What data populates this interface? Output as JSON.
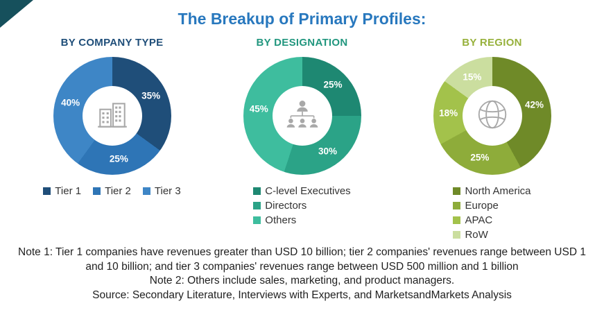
{
  "title": "The Breakup of Primary Profiles:",
  "title_color": "#2878BE",
  "corner_color": "#16505C",
  "chart_data": [
    {
      "type": "donut",
      "title": "BY COMPANY TYPE",
      "title_color": "#1F4E79",
      "labels": [
        "Tier 1",
        "Tier 2",
        "Tier 3"
      ],
      "values": [
        35,
        25,
        40
      ],
      "colors": [
        "#1F4E79",
        "#2E75B6",
        "#3E86C6"
      ],
      "legend": "horizontal",
      "center_icon": "buildings-icon",
      "start_angle": 0
    },
    {
      "type": "donut",
      "title": "BY DESIGNATION",
      "title_color": "#21967E",
      "labels": [
        "C-level Executives",
        "Directors",
        "Others"
      ],
      "values": [
        25,
        30,
        45
      ],
      "colors": [
        "#1E8872",
        "#2BA387",
        "#3EBD9E"
      ],
      "legend": "vertical",
      "center_icon": "org-chart-icon",
      "start_angle": 0
    },
    {
      "type": "donut",
      "title": "BY REGION",
      "title_color": "#97B13C",
      "labels": [
        "North America",
        "Europe",
        "APAC",
        "RoW"
      ],
      "values": [
        42,
        25,
        18,
        15
      ],
      "colors": [
        "#6F8A28",
        "#8EAC3A",
        "#A3C24B",
        "#CBDE9F"
      ],
      "legend": "vertical",
      "center_icon": "globe-icon",
      "start_angle": 0
    }
  ],
  "notes": [
    "Note 1: Tier 1 companies have revenues greater than USD 10 billion; tier 2 companies' revenues range between USD 1 and 10 billion; and tier 3 companies' revenues range between USD 500 million and 1 billion",
    "Note 2: Others include sales, marketing, and product managers.",
    "Source: Secondary Literature, Interviews with Experts, and MarketsandMarkets Analysis"
  ]
}
